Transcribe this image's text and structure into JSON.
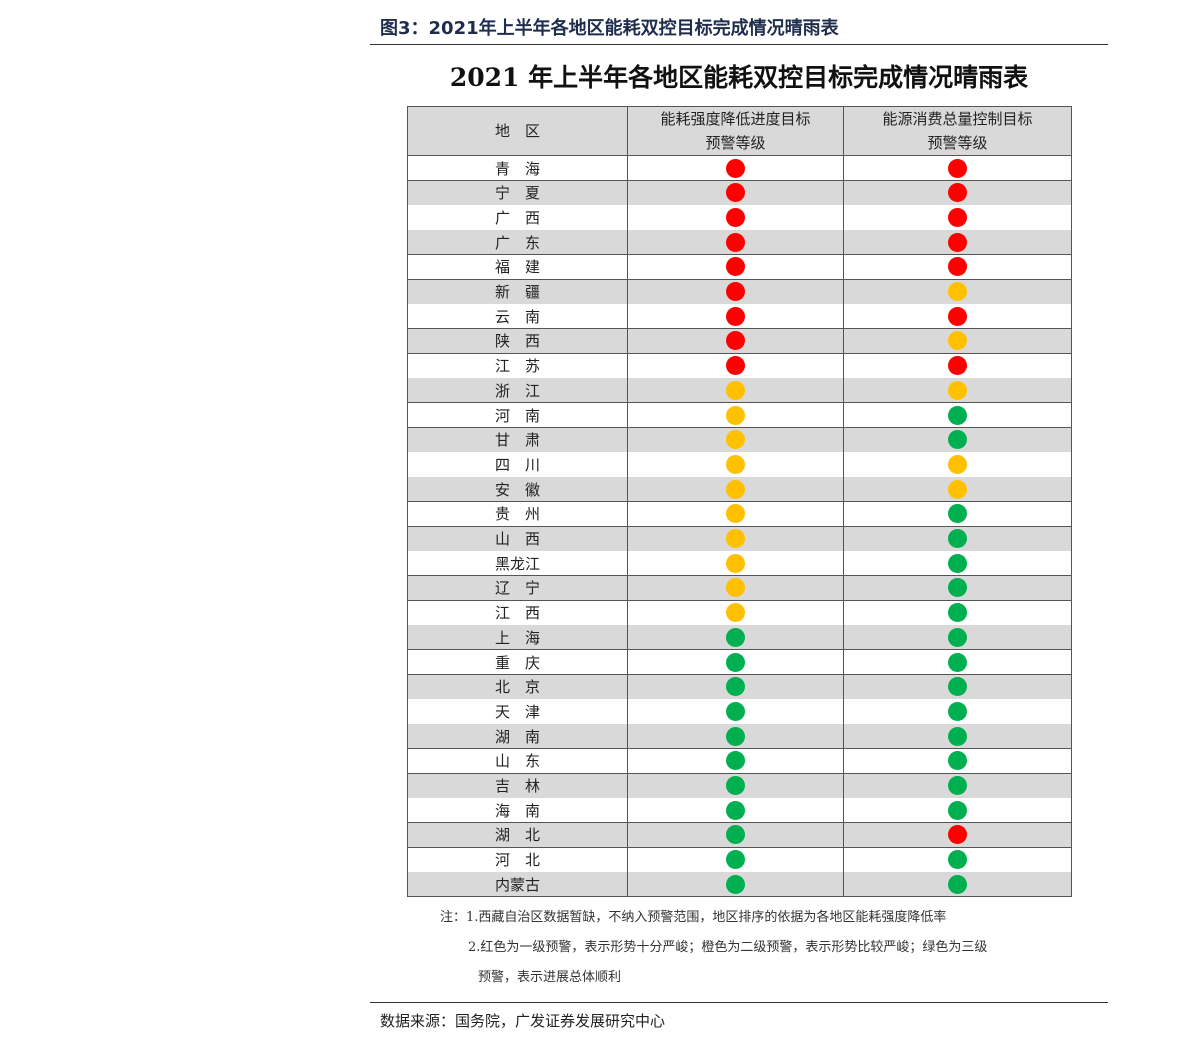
{
  "header": {
    "title": "图3：2021年上半年各地区能耗双控目标完成情况晴雨表"
  },
  "figure_title": "2021 年上半年各地区能耗双控目标完成情况晴雨表",
  "table": {
    "columns": [
      [
        "地　区"
      ],
      [
        "能耗强度降低进度目标",
        "预警等级"
      ],
      [
        "能源消费总量控制目标",
        "预警等级"
      ]
    ],
    "rows": [
      [
        "青　海",
        "#ff0000",
        "#ff0000"
      ],
      [
        "宁　夏",
        "#ff0000",
        "#ff0000"
      ],
      [
        "广　西",
        "#ff0000",
        "#ff0000"
      ],
      [
        "广　东",
        "#ff0000",
        "#ff0000"
      ],
      [
        "福　建",
        "#ff0000",
        "#ff0000"
      ],
      [
        "新　疆",
        "#ff0000",
        "#ffc000"
      ],
      [
        "云　南",
        "#ff0000",
        "#ff0000"
      ],
      [
        "陕　西",
        "#ff0000",
        "#ffc000"
      ],
      [
        "江　苏",
        "#ff0000",
        "#ff0000"
      ],
      [
        "浙　江",
        "#ffc000",
        "#ffc000"
      ],
      [
        "河　南",
        "#ffc000",
        "#00b050"
      ],
      [
        "甘　肃",
        "#ffc000",
        "#00b050"
      ],
      [
        "四　川",
        "#ffc000",
        "#ffc000"
      ],
      [
        "安　徽",
        "#ffc000",
        "#ffc000"
      ],
      [
        "贵　州",
        "#ffc000",
        "#00b050"
      ],
      [
        "山　西",
        "#ffc000",
        "#00b050"
      ],
      [
        "黑龙江",
        "#ffc000",
        "#00b050"
      ],
      [
        "辽　宁",
        "#ffc000",
        "#00b050"
      ],
      [
        "江　西",
        "#ffc000",
        "#00b050"
      ],
      [
        "上　海",
        "#00b050",
        "#00b050"
      ],
      [
        "重　庆",
        "#00b050",
        "#00b050"
      ],
      [
        "北　京",
        "#00b050",
        "#00b050"
      ],
      [
        "天　津",
        "#00b050",
        "#00b050"
      ],
      [
        "湖　南",
        "#00b050",
        "#00b050"
      ],
      [
        "山　东",
        "#00b050",
        "#00b050"
      ],
      [
        "吉　林",
        "#00b050",
        "#00b050"
      ],
      [
        "海　南",
        "#00b050",
        "#00b050"
      ],
      [
        "湖　北",
        "#00b050",
        "#ff0000"
      ],
      [
        "河　北",
        "#00b050",
        "#00b050"
      ],
      [
        "内蒙古",
        "#00b050",
        "#00b050"
      ]
    ]
  },
  "notes": [
    "注：1.西藏自治区数据暂缺，不纳入预警范围，地区排序的依据为各地区能耗强度降低率",
    "2.红色为一级预警，表示形势十分严峻；橙色为二级预警，表示形势比较严峻；绿色为三级",
    "预警，表示进展总体顺利"
  ],
  "source": "数据来源：国务院，广发证券发展研究中心"
}
